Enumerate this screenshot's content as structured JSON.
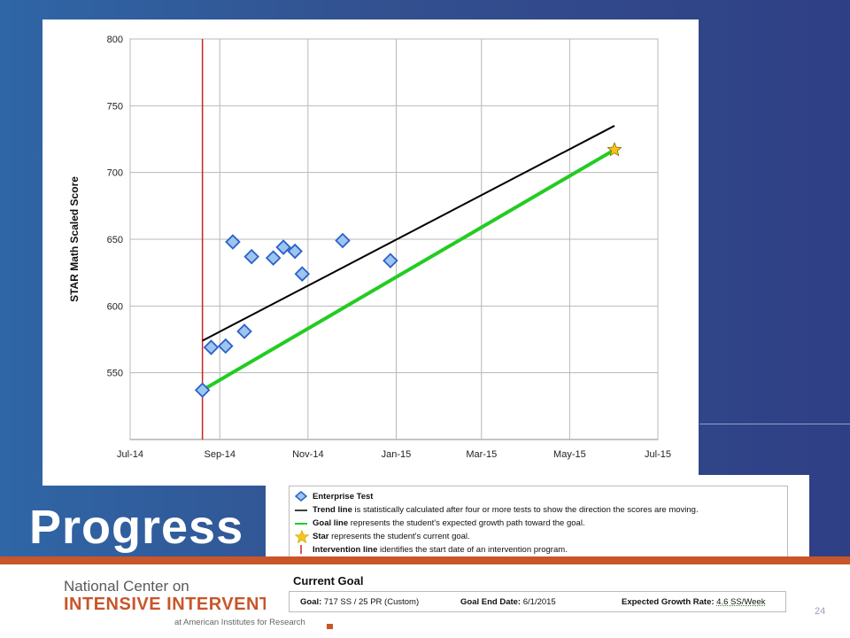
{
  "slide": {
    "title": "Progress",
    "page_number": "24",
    "colors": {
      "background": "#33508f",
      "accent": "#c8562a"
    }
  },
  "logo": {
    "line1": "National Center on",
    "line2": "INTENSIVE INTERVENTION",
    "line3": "at American Institutes for Research"
  },
  "legend": {
    "items": [
      {
        "symbol": "diamond-icon",
        "bold": "Enterprise Test",
        "text": ""
      },
      {
        "symbol": "black-line-icon",
        "bold": "Trend line",
        "text": " is statistically calculated after four or more tests to show the direction the scores are moving."
      },
      {
        "symbol": "green-line-icon",
        "bold": "Goal line",
        "text": " represents the student's expected growth path toward the goal."
      },
      {
        "symbol": "star-icon",
        "bold": "Star",
        "text": " represents the student's current goal."
      },
      {
        "symbol": "red-line-icon",
        "bold": "Intervention line",
        "text": " identifies the start date of an intervention program."
      }
    ]
  },
  "current_goal": {
    "heading": "Current Goal",
    "goal_label": "Goal:",
    "goal_value": "717 SS / 25 PR (Custom)",
    "end_label": "Goal End Date:",
    "end_value": "6/1/2015",
    "rate_label": "Expected Growth Rate:",
    "rate_value": "4.6 SS/Week"
  },
  "chart_data": {
    "type": "scatter",
    "ylabel": "STAR Math Scaled Score",
    "xlabel": "",
    "title": "",
    "x_ticks": [
      "Jul-14",
      "Sep-14",
      "Nov-14",
      "Jan-15",
      "Mar-15",
      "May-15",
      "Jul-15"
    ],
    "x_tick_dates": [
      "2014-07-01",
      "2014-09-01",
      "2014-11-01",
      "2015-01-01",
      "2015-03-01",
      "2015-05-01",
      "2015-07-01"
    ],
    "xlim": [
      "2014-07-01",
      "2015-07-01"
    ],
    "ylim": [
      500,
      800
    ],
    "y_ticks": [
      550,
      600,
      650,
      700,
      750,
      800
    ],
    "grid": true,
    "series": [
      {
        "name": "Enterprise Test",
        "marker": "diamond",
        "color": "#9ec5f0",
        "edge": "#2a62c9",
        "points": [
          {
            "x": "2014-08-20",
            "y": 537
          },
          {
            "x": "2014-08-26",
            "y": 569
          },
          {
            "x": "2014-09-05",
            "y": 570
          },
          {
            "x": "2014-09-10",
            "y": 648
          },
          {
            "x": "2014-09-18",
            "y": 581
          },
          {
            "x": "2014-09-23",
            "y": 637
          },
          {
            "x": "2014-10-08",
            "y": 636
          },
          {
            "x": "2014-10-15",
            "y": 644
          },
          {
            "x": "2014-10-23",
            "y": 641
          },
          {
            "x": "2014-10-28",
            "y": 624
          },
          {
            "x": "2014-11-25",
            "y": 649
          },
          {
            "x": "2014-12-28",
            "y": 634
          }
        ]
      },
      {
        "name": "Trend line",
        "type": "line",
        "color": "#000000",
        "points": [
          {
            "x": "2014-08-20",
            "y": 574
          },
          {
            "x": "2015-06-01",
            "y": 735
          }
        ]
      },
      {
        "name": "Goal line",
        "type": "line",
        "color": "#22cc22",
        "points": [
          {
            "x": "2014-08-20",
            "y": 537
          },
          {
            "x": "2015-06-01",
            "y": 717
          }
        ]
      },
      {
        "name": "Star",
        "marker": "star",
        "color": "#f5c518",
        "points": [
          {
            "x": "2015-06-01",
            "y": 717
          }
        ]
      },
      {
        "name": "Intervention line",
        "type": "vline",
        "color": "#cc2222",
        "x": "2014-08-20"
      }
    ]
  }
}
